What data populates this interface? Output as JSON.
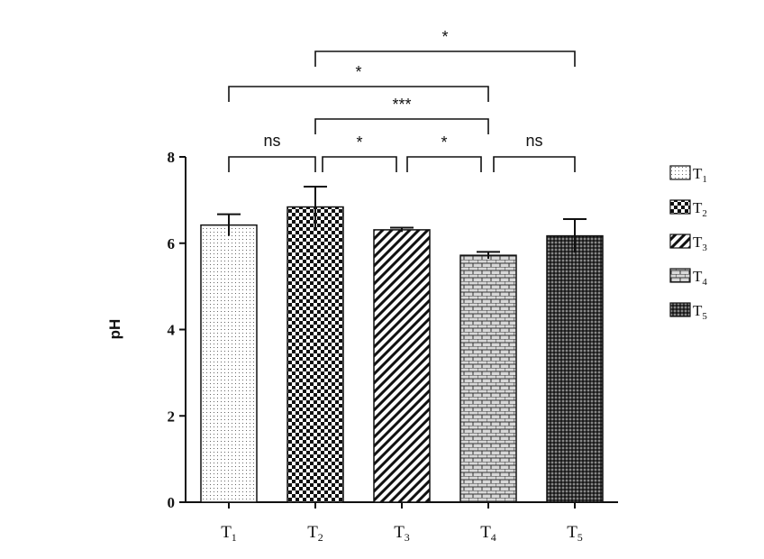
{
  "chart_data": {
    "type": "bar",
    "categories": [
      "T1",
      "T2",
      "T3",
      "T4",
      "T5"
    ],
    "category_labels": [
      {
        "main": "T",
        "sub": "1"
      },
      {
        "main": "T",
        "sub": "2"
      },
      {
        "main": "T",
        "sub": "3"
      },
      {
        "main": "T",
        "sub": "4"
      },
      {
        "main": "T",
        "sub": "5"
      }
    ],
    "values": [
      6.42,
      6.84,
      6.31,
      5.72,
      6.17
    ],
    "error": [
      0.25,
      0.47,
      0.05,
      0.08,
      0.39
    ],
    "patterns": [
      "dots",
      "checker",
      "diagonal",
      "brick",
      "dense"
    ],
    "title": "",
    "xlabel": "",
    "ylabel": "pH",
    "ylim": [
      0,
      8
    ],
    "yticks": [
      0,
      2,
      4,
      6,
      8
    ],
    "grid": false,
    "legend": {
      "placement": "right",
      "entries": [
        {
          "main": "T",
          "sub": "1"
        },
        {
          "main": "T",
          "sub": "2"
        },
        {
          "main": "T",
          "sub": "3"
        },
        {
          "main": "T",
          "sub": "4"
        },
        {
          "main": "T",
          "sub": "5"
        }
      ]
    },
    "significance": [
      {
        "from": 0,
        "to": 1,
        "label": "ns"
      },
      {
        "from": 1,
        "to": 2,
        "label": "*"
      },
      {
        "from": 2,
        "to": 3,
        "label": "*"
      },
      {
        "from": 3,
        "to": 4,
        "label": "ns"
      },
      {
        "from": 1,
        "to": 3,
        "label": "***"
      },
      {
        "from": 0,
        "to": 3,
        "label": "*"
      },
      {
        "from": 1,
        "to": 4,
        "label": "*"
      }
    ]
  }
}
